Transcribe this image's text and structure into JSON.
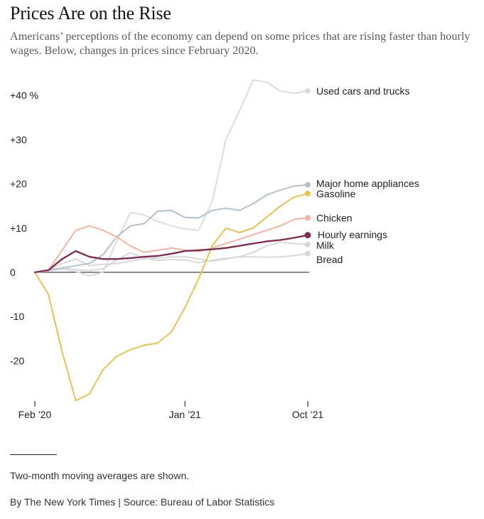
{
  "header": {
    "title": "Prices Are on the Rise",
    "subtitle": "Americans’ perceptions of the economy can depend on some prices that are rising faster than hourly wages. Below, changes in prices since February 2020."
  },
  "footer": {
    "note": "Two-month moving averages are shown.",
    "credit": "By The New York Times | Source: Bureau of Labor Statistics"
  },
  "chart_data": {
    "type": "line",
    "title": "Prices Are on the Rise",
    "xlabel": "",
    "ylabel": "",
    "x": [
      "2020-02",
      "2020-03",
      "2020-04",
      "2020-05",
      "2020-06",
      "2020-07",
      "2020-08",
      "2020-09",
      "2020-10",
      "2020-11",
      "2020-12",
      "2021-01",
      "2021-02",
      "2021-03",
      "2021-04",
      "2021-05",
      "2021-06",
      "2021-07",
      "2021-08",
      "2021-09",
      "2021-10"
    ],
    "xticks": [
      {
        "x": "2020-02",
        "label": "Feb ’20"
      },
      {
        "x": "2021-01",
        "label": "Jan ’21"
      },
      {
        "x": "2021-10",
        "label": "Oct ’21"
      }
    ],
    "yticks": [
      {
        "value": 40,
        "label": "+40 %"
      },
      {
        "value": 30,
        "label": "+30"
      },
      {
        "value": 20,
        "label": "+20"
      },
      {
        "value": 10,
        "label": "+10"
      },
      {
        "value": 0,
        "label": "0"
      },
      {
        "value": -10,
        "label": "-10"
      },
      {
        "value": -20,
        "label": "-20"
      }
    ],
    "ylim": [
      -29.5,
      44
    ],
    "grid": false,
    "zero_line": true,
    "series": [
      {
        "name": "Used cars and trucks",
        "color": "#dcdcdc",
        "values": [
          0,
          0.3,
          0.7,
          0.2,
          -0.8,
          0,
          7,
          13.5,
          13,
          11.5,
          10.5,
          9.8,
          9.5,
          16,
          30,
          36.5,
          43.5,
          43,
          41,
          40.5,
          41
        ]
      },
      {
        "name": "Major home appliances",
        "color": "#b5c0c8",
        "values": [
          0,
          0.5,
          1,
          1.5,
          2,
          4,
          8,
          10.5,
          11,
          13.8,
          14,
          12.4,
          12.3,
          14,
          14.5,
          14,
          15.5,
          17.5,
          18.6,
          19.5,
          19.8
        ]
      },
      {
        "name": "Gasoline",
        "color": "#e5c158",
        "values": [
          0,
          -5,
          -18,
          -29,
          -27.5,
          -22,
          -19,
          -17.5,
          -16.5,
          -16,
          -13.5,
          -8,
          -1.5,
          6,
          10,
          9,
          10,
          12.5,
          15,
          17,
          17.8
        ]
      },
      {
        "name": "Chicken",
        "color": "#f2b3a7",
        "values": [
          0,
          0.5,
          5,
          9.5,
          10.5,
          9.5,
          8,
          6,
          4.5,
          5,
          5.5,
          5,
          4.7,
          5.5,
          6.5,
          7.5,
          8.5,
          9.5,
          10.5,
          12,
          12.3
        ]
      },
      {
        "name": "Hourly earnings",
        "color": "#7a3154",
        "values": [
          0,
          0.5,
          3,
          4.8,
          3.5,
          3.0,
          3.0,
          3.2,
          3.5,
          3.7,
          4.2,
          4.8,
          5.0,
          5.2,
          5.5,
          6.0,
          6.5,
          7.0,
          7.3,
          7.8,
          8.4
        ]
      },
      {
        "name": "Milk",
        "color": "#d8d8d8",
        "values": [
          0,
          0.5,
          2.0,
          3.0,
          1.5,
          1.8,
          2.0,
          2.5,
          3.0,
          3.2,
          3.5,
          3.5,
          3.0,
          2.5,
          3.0,
          3.5,
          4.5,
          6.0,
          6.8,
          6.5,
          6.3
        ]
      },
      {
        "name": "Bread",
        "color": "#d8d8d8",
        "values": [
          0,
          0.3,
          1.0,
          0.6,
          0.4,
          0.8,
          2.8,
          4.4,
          3.3,
          2.7,
          2.9,
          2.8,
          2.2,
          2.7,
          3.2,
          3.5,
          3.5,
          3.4,
          3.5,
          3.8,
          4.2
        ]
      }
    ]
  }
}
